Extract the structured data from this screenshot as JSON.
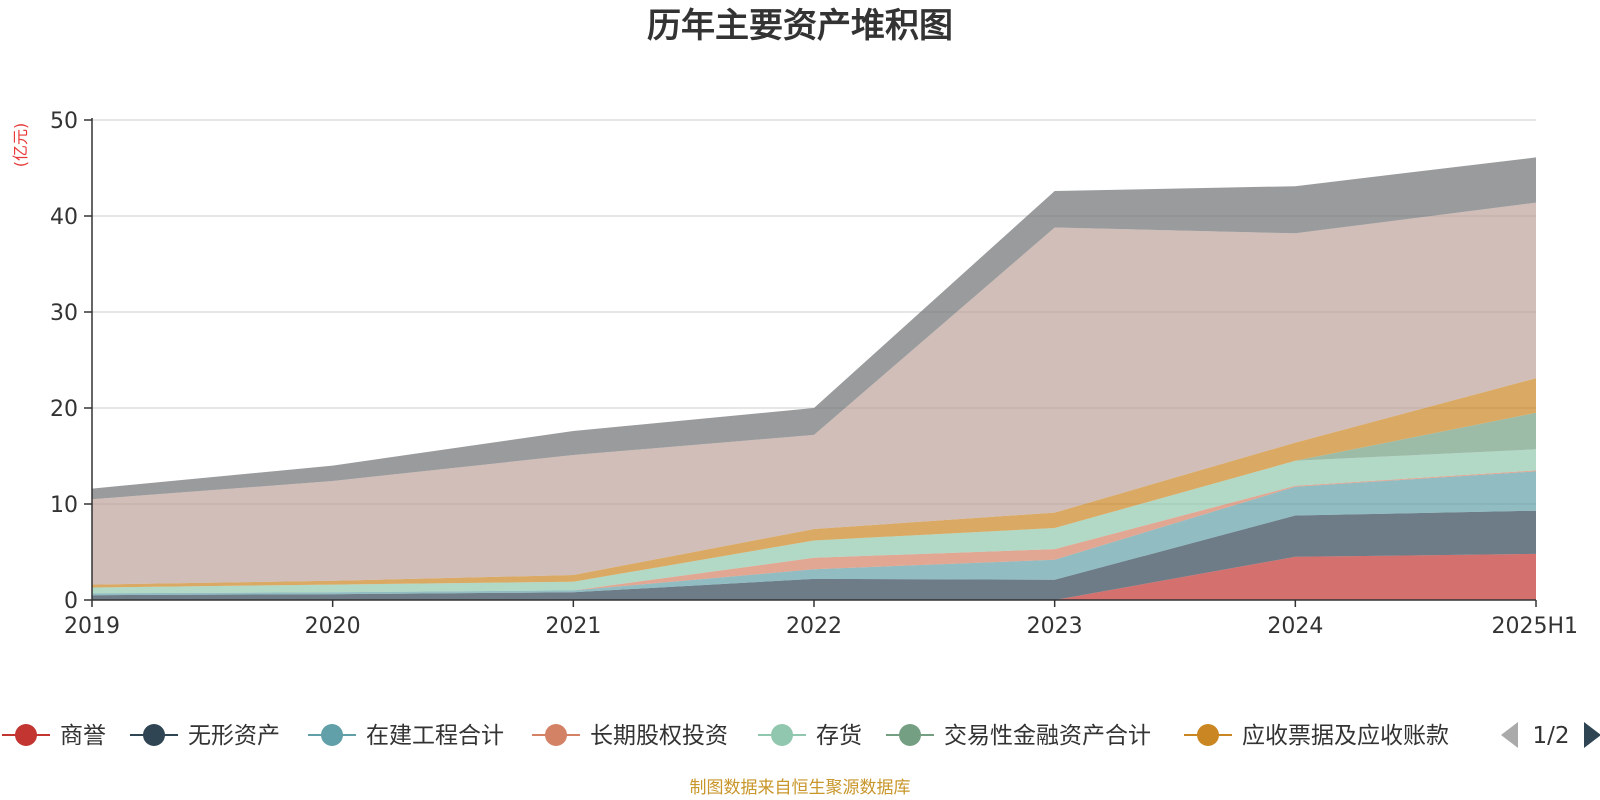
{
  "chart_data": {
    "type": "area",
    "stacked": true,
    "title": "历年主要资产堆积图",
    "ylabel": "(亿元)",
    "xlabel": "",
    "categories": [
      "2019",
      "2020",
      "2021",
      "2022",
      "2023",
      "2024",
      "2025H1"
    ],
    "ylim": [
      0,
      50
    ],
    "yticks": [
      0,
      10,
      20,
      30,
      40,
      50
    ],
    "grid": true,
    "legend_position": "bottom",
    "series": [
      {
        "name": "商誉",
        "color": "#c23531",
        "values": [
          0,
          0,
          0,
          0,
          0,
          4.5,
          4.8
        ]
      },
      {
        "name": "无形资产",
        "color": "#2f4554",
        "values": [
          0.5,
          0.6,
          0.8,
          2.2,
          2.1,
          4.3,
          4.5
        ]
      },
      {
        "name": "在建工程合计",
        "color": "#61a0a8",
        "values": [
          0.2,
          0.2,
          0.2,
          1.0,
          2.1,
          3.0,
          4.1
        ]
      },
      {
        "name": "长期股权投资",
        "color": "#d48265",
        "values": [
          0,
          0,
          0,
          1.2,
          1.1,
          0.1,
          0.1
        ]
      },
      {
        "name": "存货",
        "color": "#91c7ae",
        "values": [
          0.6,
          0.8,
          0.9,
          1.8,
          2.2,
          2.6,
          2.2
        ]
      },
      {
        "name": "交易性金融资产合计",
        "color": "#749f83",
        "values": [
          0,
          0,
          0,
          0,
          0,
          0,
          3.8
        ]
      },
      {
        "name": "应收票据及应收账款",
        "color": "#ca8622",
        "values": [
          0.3,
          0.4,
          0.7,
          1.2,
          1.6,
          1.9,
          3.6
        ]
      },
      {
        "name": "",
        "color": "#bda29a",
        "values": [
          8.9,
          10.4,
          12.5,
          9.8,
          29.7,
          21.8,
          18.3
        ]
      },
      {
        "name": "",
        "color": "#6e7074",
        "values": [
          1.1,
          1.6,
          2.5,
          2.8,
          3.8,
          4.9,
          4.7
        ]
      }
    ]
  },
  "legend": {
    "items": [
      {
        "label": "商誉",
        "color": "#c23531"
      },
      {
        "label": "无形资产",
        "color": "#2f4554"
      },
      {
        "label": "在建工程合计",
        "color": "#61a0a8"
      },
      {
        "label": "长期股权投资",
        "color": "#d48265"
      },
      {
        "label": "存货",
        "color": "#91c7ae"
      },
      {
        "label": "交易性金融资产合计",
        "color": "#749f83"
      },
      {
        "label": "应收票据及应收账款",
        "color": "#ca8622"
      }
    ],
    "page_indicator": "1/2"
  },
  "source": "制图数据来自恒生聚源数据库"
}
